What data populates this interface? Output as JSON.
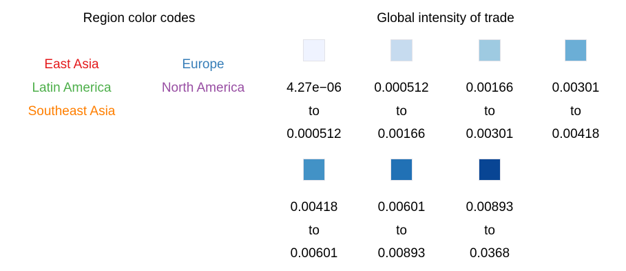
{
  "region_legend": {
    "title": "Region color codes",
    "items": [
      {
        "label": "East Asia",
        "color": "#e41a1c"
      },
      {
        "label": "Europe",
        "color": "#377eb8"
      },
      {
        "label": "Latin America",
        "color": "#4daf4a"
      },
      {
        "label": "North America",
        "color": "#984ea3"
      },
      {
        "label": "Southeast Asia",
        "color": "#ff7f00"
      }
    ]
  },
  "chart_data": {
    "type": "legend",
    "title": "Global intensity of trade",
    "bins": [
      {
        "from": "4.27e−06",
        "to": "0.000512",
        "connector": "to",
        "color": "#eff3ff"
      },
      {
        "from": "0.000512",
        "to": "0.00166",
        "connector": "to",
        "color": "#c6dbef"
      },
      {
        "from": "0.00166",
        "to": "0.00301",
        "connector": "to",
        "color": "#9ecae1"
      },
      {
        "from": "0.00301",
        "to": "0.00418",
        "connector": "to",
        "color": "#6baed6"
      },
      {
        "from": "0.00418",
        "to": "0.00601",
        "connector": "to",
        "color": "#4292c6"
      },
      {
        "from": "0.00601",
        "to": "0.00893",
        "connector": "to",
        "color": "#2171b5"
      },
      {
        "from": "0.00893",
        "to": "0.0368",
        "connector": "to",
        "color": "#084594"
      }
    ]
  }
}
